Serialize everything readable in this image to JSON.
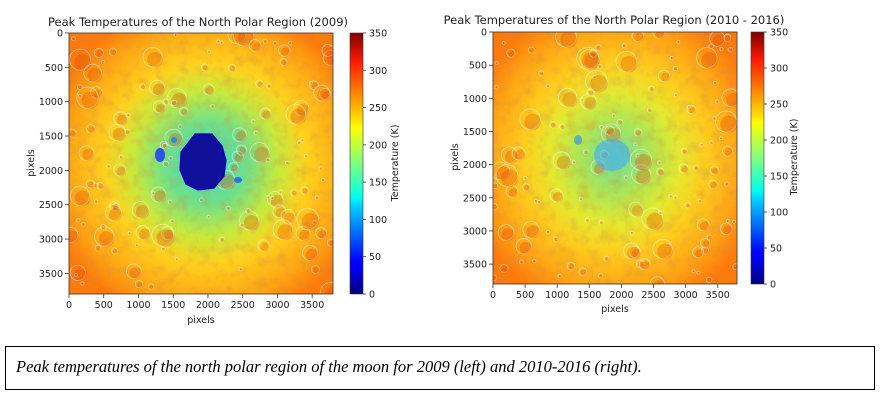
{
  "chart_data": [
    {
      "type": "heatmap",
      "title": "Peak Temperatures of the North Polar Region (2009)",
      "xlabel": "pixels",
      "ylabel": "pixels",
      "x_range": [
        0,
        3800
      ],
      "y_range": [
        0,
        3800
      ],
      "y_inverted": true,
      "x_ticks": [
        0,
        500,
        1000,
        1500,
        2000,
        2500,
        3000,
        3500
      ],
      "y_ticks": [
        0,
        500,
        1000,
        1500,
        2000,
        2500,
        3000,
        3500
      ],
      "colorbar": {
        "label": "Temperature (K)",
        "range": [
          0,
          350
        ],
        "ticks": [
          0,
          50,
          100,
          150,
          200,
          250,
          300,
          350
        ],
        "colormap": "jet"
      },
      "features": {
        "cold_region_center": [
          1900,
          1950
        ],
        "cold_region_min_K": 0,
        "typical_highland_K": 270
      }
    },
    {
      "type": "heatmap",
      "title": "Peak Temperatures of the North Polar Region (2010 - 2016)",
      "xlabel": "pixels",
      "ylabel": "pixels",
      "x_range": [
        0,
        3800
      ],
      "y_range": [
        0,
        3800
      ],
      "y_inverted": true,
      "x_ticks": [
        0,
        500,
        1000,
        1500,
        2000,
        2500,
        3000,
        3500
      ],
      "y_ticks": [
        0,
        500,
        1000,
        1500,
        2000,
        2500,
        3000,
        3500
      ],
      "colorbar": {
        "label": "Temperature (K)",
        "range": [
          0,
          350
        ],
        "ticks": [
          0,
          50,
          100,
          150,
          200,
          250,
          300,
          350
        ],
        "colormap": "jet"
      },
      "features": {
        "cold_region_center": [
          1900,
          1950
        ],
        "cold_region_min_K": 110,
        "typical_highland_K": 260
      }
    }
  ],
  "caption": "Peak temperatures of the north polar region of the moon for 2009 (left) and 2010-2016 (right)."
}
